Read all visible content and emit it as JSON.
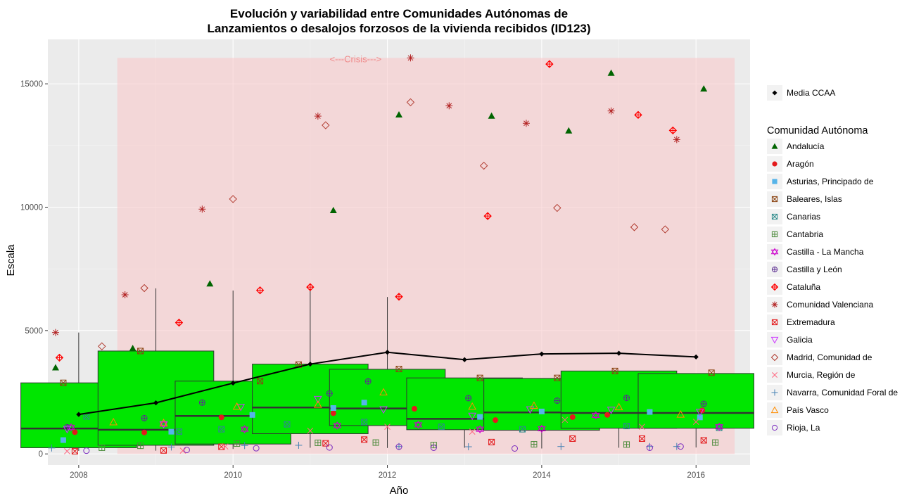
{
  "chart_data": {
    "type": "boxplot",
    "title": "Evolución y variabilidad entre Comunidades Autónomas de",
    "subtitle": "Lanzamientos o desalojos forzosos de la vivienda recibidos (ID123)",
    "xlabel": "Año",
    "ylabel": "Escala",
    "xlim": [
      2007.6,
      2016.7
    ],
    "ylim": [
      -450,
      16800
    ],
    "x_ticks": [
      2008,
      2010,
      2012,
      2014,
      2016
    ],
    "y_ticks": [
      0,
      5000,
      10000,
      15000
    ],
    "x_tick_labels": [
      "2008",
      "2010",
      "2012",
      "2014",
      "2016"
    ],
    "y_tick_labels": [
      "0",
      "5000",
      "10000",
      "15000"
    ],
    "grid": true,
    "background": "#ebebeb",
    "crisis": {
      "label": "<---Crisis--->",
      "x_start": 2008.5,
      "x_end": 2016.5,
      "y_top": 16050,
      "color": "#f8c9cc"
    },
    "box_color": "#00e600",
    "boxes": [
      {
        "year": 2008,
        "q1": 250,
        "median": 1030,
        "q3": 2880,
        "whisker_high": 4920,
        "whisker_low": 120
      },
      {
        "year": 2009,
        "q1": 350,
        "median": 980,
        "q3": 4170,
        "whisker_high": 6710,
        "whisker_low": 130
      },
      {
        "year": 2010,
        "q1": 400,
        "median": 1540,
        "q3": 2950,
        "whisker_high": 6620,
        "whisker_low": 200
      },
      {
        "year": 2011,
        "q1": 820,
        "median": 1880,
        "q3": 3640,
        "whisker_high": 6760,
        "whisker_low": 250
      },
      {
        "year": 2012,
        "q1": 1150,
        "median": 1840,
        "q3": 3430,
        "whisker_high": 6360,
        "whisker_low": 240
      },
      {
        "year": 2013,
        "q1": 980,
        "median": 1420,
        "q3": 3080,
        "whisker_high": 3080,
        "whisker_low": 250
      },
      {
        "year": 2014,
        "q1": 960,
        "median": 1680,
        "q3": 3060,
        "whisker_high": 3060,
        "whisker_low": 220
      },
      {
        "year": 2015,
        "q1": 1040,
        "median": 1660,
        "q3": 3360,
        "whisker_high": 3360,
        "whisker_low": 250
      },
      {
        "year": 2016,
        "q1": 1040,
        "median": 1660,
        "q3": 3260,
        "whisker_high": 3260,
        "whisker_low": 260
      }
    ],
    "mean_series": {
      "name": "Media CCAA",
      "x": [
        2008,
        2009,
        2010,
        2011,
        2012,
        2013,
        2014,
        2015,
        2016
      ],
      "y": [
        1600,
        2070,
        2870,
        3640,
        4120,
        3820,
        4050,
        4080,
        3930
      ]
    },
    "legend_title": "Comunidad Autónoma",
    "legend_position": "right",
    "series": [
      {
        "name": "Andalucía",
        "shape": "triangle",
        "color": "#006400",
        "x": [
          2007.7,
          2008.7,
          2009.7,
          2011.3,
          2012.15,
          2013.35,
          2014.35,
          2014.9,
          2016.1
        ],
        "y": [
          3500,
          4280,
          6900,
          9870,
          13750,
          13700,
          13100,
          15440,
          14800
        ]
      },
      {
        "name": "Aragón",
        "shape": "dot",
        "color": "#e31a1c",
        "x": [
          2007.95,
          2008.85,
          2009.85,
          2011.3,
          2012.35,
          2013.4,
          2014.4,
          2014.85,
          2016.08
        ],
        "y": [
          880,
          870,
          1480,
          1650,
          1830,
          1370,
          1490,
          1580,
          1760
        ]
      },
      {
        "name": "Asturias, Principado de",
        "shape": "square",
        "color": "#56b4e9",
        "x": [
          2007.8,
          2009.2,
          2010.25,
          2011.3,
          2011.7,
          2013.2,
          2014.0,
          2015.4,
          2016.05
        ],
        "y": [
          560,
          900,
          1580,
          1860,
          2080,
          1500,
          1720,
          1700,
          1480
        ]
      },
      {
        "name": "Baleares, Islas",
        "shape": "square-x",
        "color": "#8b4513",
        "x": [
          2007.8,
          2008.8,
          2010.35,
          2010.85,
          2012.15,
          2013.2,
          2014.2,
          2014.95,
          2016.2
        ],
        "y": [
          2880,
          4170,
          2950,
          3620,
          3440,
          3080,
          3080,
          3360,
          3290
        ]
      },
      {
        "name": "Canarias",
        "shape": "square-x",
        "color": "#2e8b8b",
        "x": [
          2008.1,
          2009.3,
          2009.85,
          2010.7,
          2011.7,
          2012.7,
          2013.75,
          2015.1,
          2016.3
        ],
        "y": [
          1520,
          900,
          1000,
          1200,
          1290,
          1100,
          1000,
          1130,
          1060
        ]
      },
      {
        "name": "Cantabria",
        "shape": "square-plus",
        "color": "#4d8b3c",
        "x": [
          2008.3,
          2008.8,
          2010.05,
          2011.1,
          2011.85,
          2012.6,
          2013.9,
          2015.1,
          2016.25
        ],
        "y": [
          250,
          330,
          420,
          450,
          460,
          360,
          390,
          380,
          460
        ]
      },
      {
        "name": "Castilla - La Mancha",
        "shape": "david-star",
        "color": "#cc00cc",
        "x": [
          2007.9,
          2009.1,
          2010.15,
          2011.35,
          2012.4,
          2013.2,
          2014.0,
          2014.7,
          2016.3
        ],
        "y": [
          1080,
          1200,
          1000,
          1150,
          1180,
          1000,
          1020,
          1560,
          1100
        ]
      },
      {
        "name": "Castilla y León",
        "shape": "circle-plus",
        "color": "#5b2c91",
        "x": [
          2007.85,
          2008.85,
          2009.6,
          2011.25,
          2011.75,
          2013.05,
          2014.2,
          2015.1,
          2016.1
        ],
        "y": [
          1080,
          1450,
          2080,
          2450,
          2940,
          2260,
          2160,
          2270,
          2030
        ]
      },
      {
        "name": "Cataluña",
        "shape": "circle-diamond-plus",
        "color": "#ff0000",
        "x": [
          2007.75,
          2009.3,
          2010.35,
          2011.0,
          2012.15,
          2013.3,
          2014.1,
          2015.25,
          2015.7
        ],
        "y": [
          3900,
          5320,
          6630,
          6760,
          6370,
          9640,
          15800,
          13740,
          13110
        ]
      },
      {
        "name": "Comunidad Valenciana",
        "shape": "asterisk",
        "color": "#b22222",
        "x": [
          2007.7,
          2008.6,
          2009.6,
          2011.1,
          2012.3,
          2012.8,
          2013.8,
          2014.9,
          2015.75
        ],
        "y": [
          4920,
          6450,
          9920,
          13690,
          16050,
          14110,
          13400,
          13900,
          12740
        ]
      },
      {
        "name": "Extremadura",
        "shape": "square-x",
        "color": "#e31a1c",
        "x": [
          2007.95,
          2009.1,
          2009.85,
          2011.2,
          2011.7,
          2013.35,
          2014.4,
          2015.3,
          2016.1
        ],
        "y": [
          110,
          140,
          290,
          430,
          580,
          480,
          620,
          620,
          550
        ]
      },
      {
        "name": "Galicia",
        "shape": "tri-down",
        "color": "#cc33ff",
        "x": [
          2007.85,
          2009.1,
          2010.1,
          2011.1,
          2011.95,
          2013.1,
          2013.85,
          2014.9,
          2016.05
        ],
        "y": [
          1000,
          1200,
          1900,
          2220,
          1800,
          1540,
          1800,
          1780,
          1700
        ]
      },
      {
        "name": "Madrid, Comunidad de",
        "shape": "diamond",
        "color": "#b03a2e",
        "x": [
          2008.3,
          2008.85,
          2010.0,
          2011.2,
          2012.3,
          2013.25,
          2014.2,
          2015.2,
          2015.6
        ],
        "y": [
          4360,
          6720,
          10330,
          13320,
          14250,
          11680,
          9970,
          9190,
          9100
        ]
      },
      {
        "name": "Murcia, Región de",
        "shape": "x",
        "color": "#ff6680",
        "x": [
          2007.85,
          2009.35,
          2009.9,
          2011.0,
          2012.0,
          2013.1,
          2014.3,
          2015.3,
          2016.0
        ],
        "y": [
          110,
          130,
          300,
          940,
          1100,
          900,
          1380,
          1100,
          1300
        ]
      },
      {
        "name": "Navarra, Comunidad Foral de",
        "shape": "plus",
        "color": "#4682b4",
        "x": [
          2007.65,
          2009.2,
          2010.15,
          2010.85,
          2012.15,
          2013.05,
          2014.25,
          2015.4,
          2015.75
        ],
        "y": [
          240,
          280,
          340,
          350,
          300,
          290,
          300,
          300,
          300
        ]
      },
      {
        "name": "País Vasco",
        "shape": "triangle-open",
        "color": "#ff8c00",
        "x": [
          2008.45,
          2009.1,
          2010.05,
          2011.1,
          2011.95,
          2013.1,
          2013.9,
          2015.0,
          2015.8
        ],
        "y": [
          1290,
          1260,
          1920,
          2000,
          2500,
          1920,
          1960,
          1900,
          1600
        ]
      },
      {
        "name": "Rioja, La",
        "shape": "circle",
        "color": "#7b2cbf",
        "x": [
          2008.1,
          2009.4,
          2010.3,
          2011.25,
          2012.15,
          2012.6,
          2013.65,
          2015.4,
          2015.8
        ],
        "y": [
          130,
          160,
          230,
          260,
          290,
          250,
          220,
          250,
          300
        ]
      }
    ]
  }
}
